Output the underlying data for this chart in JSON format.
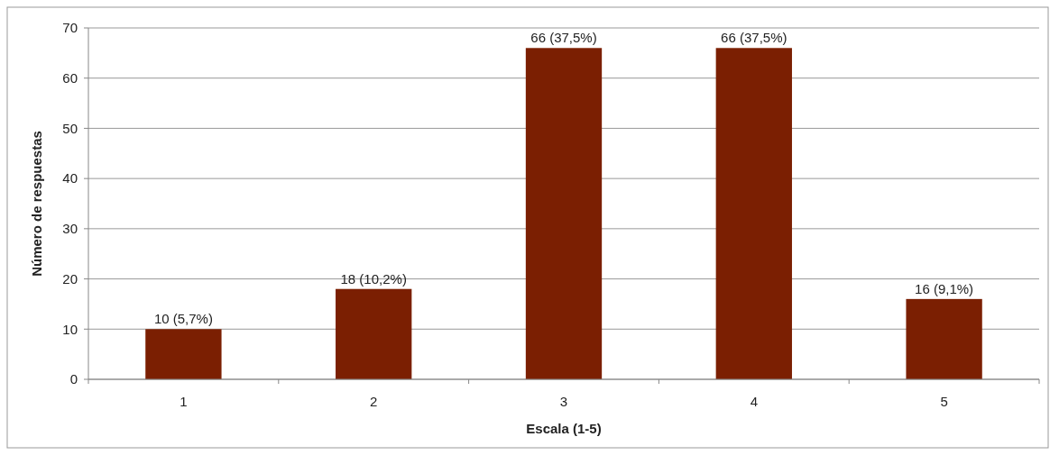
{
  "chart_data": {
    "type": "bar",
    "xlabel": "Escala (1-5)",
    "ylabel": "Número de respuestas",
    "categories": [
      "1",
      "2",
      "3",
      "4",
      "5"
    ],
    "values": [
      10,
      18,
      66,
      66,
      16
    ],
    "value_labels": [
      "10 (5,7%)",
      "18 (10,2%)",
      "66 (37,5%)",
      "66 (37,5%)",
      "16 (9,1%)"
    ],
    "color": "#7b1f02",
    "ylim": [
      0,
      70
    ],
    "yticks": [
      0,
      10,
      20,
      30,
      40,
      50,
      60,
      70
    ],
    "grid": "y"
  }
}
